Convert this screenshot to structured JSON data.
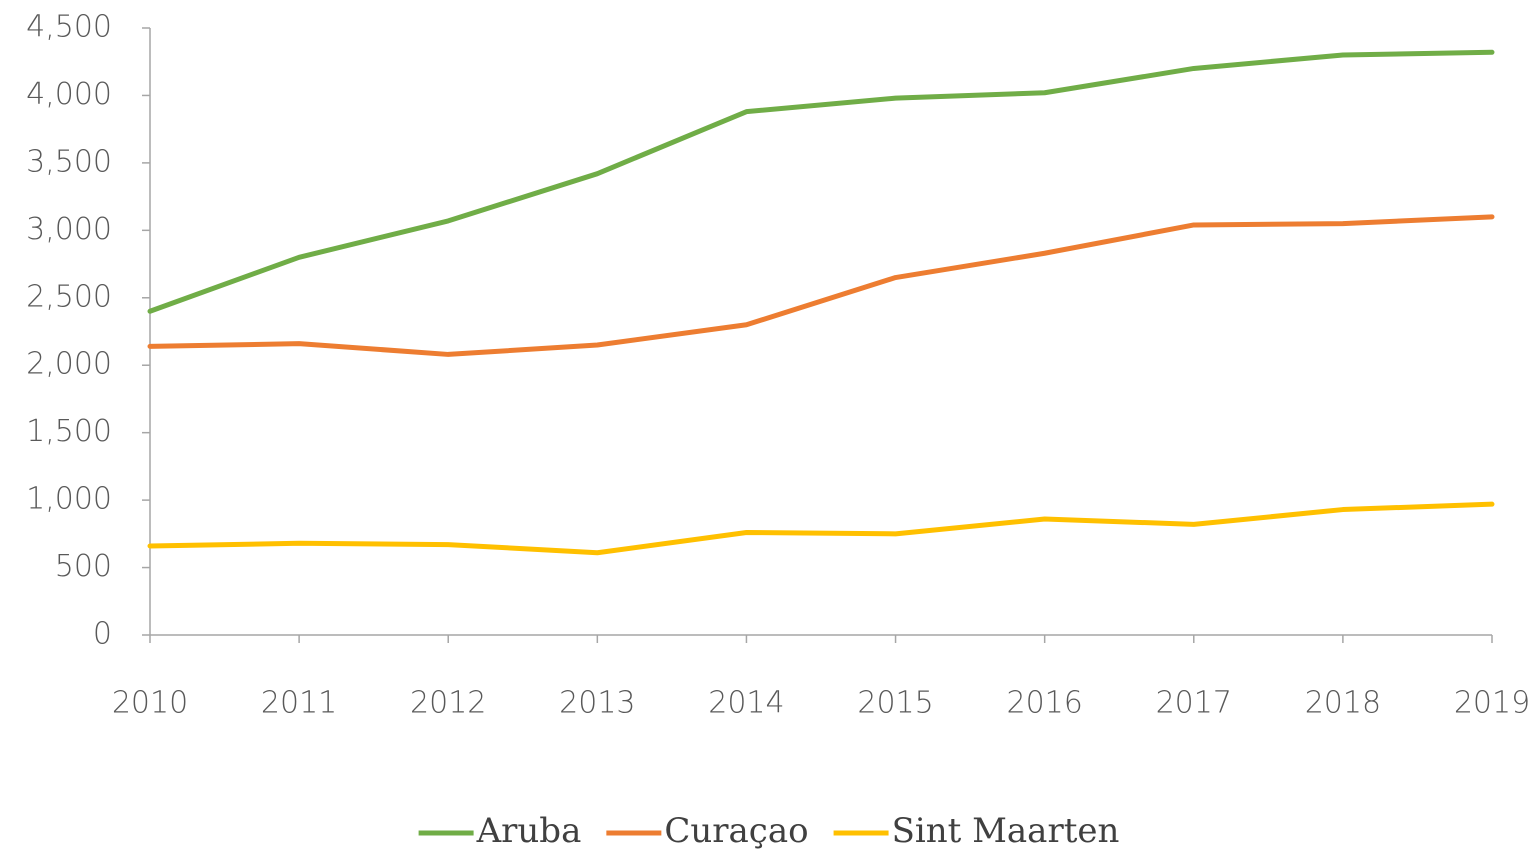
{
  "chart_data": {
    "type": "line",
    "categories": [
      "2010",
      "2011",
      "2012",
      "2013",
      "2014",
      "2015",
      "2016",
      "2017",
      "2018",
      "2019"
    ],
    "series": [
      {
        "name": "Aruba",
        "color": "#70ad47",
        "values": [
          2400,
          2800,
          3070,
          3420,
          3880,
          3980,
          4020,
          4200,
          4300,
          4320
        ]
      },
      {
        "name": "Curaçao",
        "color": "#ed7d31",
        "values": [
          2140,
          2160,
          2080,
          2150,
          2300,
          2650,
          2830,
          3040,
          3050,
          3100
        ]
      },
      {
        "name": "Sint Maarten",
        "color": "#ffc000",
        "values": [
          660,
          680,
          670,
          610,
          760,
          750,
          860,
          820,
          930,
          970
        ]
      }
    ],
    "ylim": [
      0,
      4500
    ],
    "yticks": [
      0,
      500,
      {
        "value": 1000,
        "label": "1,000"
      },
      {
        "value": 1500,
        "label": "1,500"
      },
      {
        "value": 2000,
        "label": "2,000"
      },
      {
        "value": 2500,
        "label": "2,500"
      },
      {
        "value": 3000,
        "label": "3,000"
      },
      {
        "value": 3500,
        "label": "3,500"
      },
      {
        "value": 4000,
        "label": "4,000"
      },
      {
        "value": 4500,
        "label": "4,500"
      }
    ],
    "grid": false,
    "legend": "bottom"
  }
}
